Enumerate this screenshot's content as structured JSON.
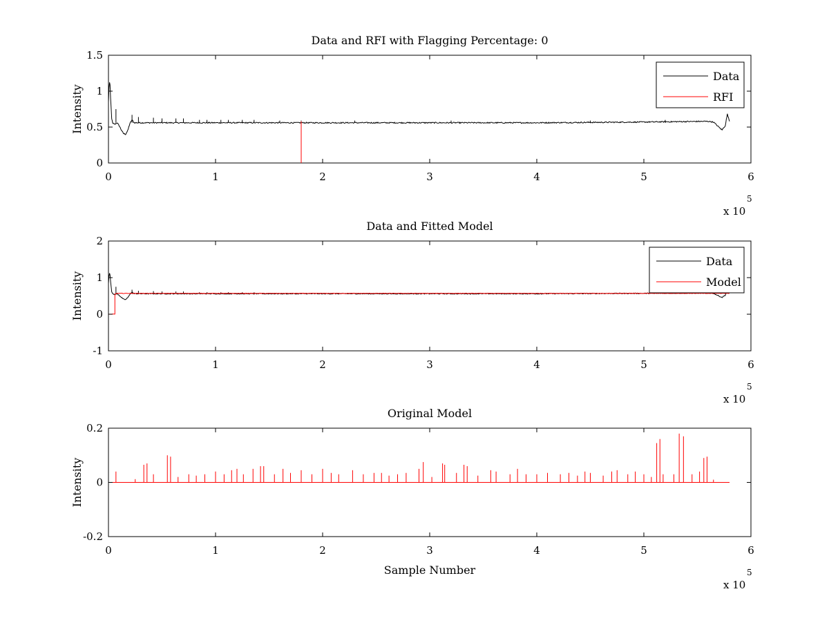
{
  "chart_data": [
    {
      "type": "line",
      "title": "Data and RFI with Flagging Percentage: 0",
      "xlabel": "",
      "ylabel": "Intensity",
      "xlim": [
        0,
        6
      ],
      "ylim": [
        0,
        1.5
      ],
      "x_exponent_label": "x 10",
      "x_exponent": "5",
      "xticks": [
        "0",
        "1",
        "2",
        "3",
        "4",
        "5",
        "6"
      ],
      "yticks": [
        "0",
        "0.5",
        "1",
        "1.5"
      ],
      "legend_position": "top-right",
      "series": [
        {
          "name": "Data",
          "color": "#000000",
          "baseline": 0.56,
          "noise": 0.008,
          "x": [
            0,
            0.005,
            0.01,
            0.015,
            0.02,
            0.03,
            0.04,
            0.06,
            0.08,
            0.1,
            0.12,
            0.14,
            0.16,
            0.18,
            0.2,
            0.22,
            0.24,
            0.28,
            0.35,
            1.0,
            2.0,
            3.0,
            4.0,
            5.0,
            5.6,
            5.65,
            5.7,
            5.73,
            5.76,
            5.78,
            5.8
          ],
          "y": [
            0.85,
            1.05,
            1.12,
            1.08,
            0.9,
            0.62,
            0.55,
            0.54,
            0.56,
            0.52,
            0.46,
            0.41,
            0.4,
            0.45,
            0.55,
            0.6,
            0.56,
            0.56,
            0.56,
            0.56,
            0.56,
            0.56,
            0.56,
            0.57,
            0.58,
            0.57,
            0.5,
            0.46,
            0.52,
            0.68,
            0.58
          ],
          "spikes": [
            [
              0.07,
              0.75
            ],
            [
              0.22,
              0.67
            ],
            [
              0.28,
              0.64
            ],
            [
              0.42,
              0.63
            ],
            [
              0.5,
              0.62
            ],
            [
              0.63,
              0.62
            ],
            [
              0.7,
              0.62
            ],
            [
              0.85,
              0.6
            ],
            [
              0.92,
              0.6
            ],
            [
              1.05,
              0.6
            ],
            [
              1.12,
              0.6
            ],
            [
              1.25,
              0.6
            ],
            [
              1.36,
              0.6
            ],
            [
              1.6,
              0.59
            ],
            [
              1.8,
              0.59
            ],
            [
              2.3,
              0.59
            ],
            [
              3.2,
              0.59
            ],
            [
              4.5,
              0.59
            ],
            [
              5.2,
              0.6
            ]
          ]
        },
        {
          "name": "RFI",
          "color": "#ff0000",
          "spikes": [
            [
              1.8,
              0.58
            ]
          ]
        }
      ]
    },
    {
      "type": "line",
      "title": "Data and Fitted Model",
      "xlabel": "",
      "ylabel": "Intensity",
      "xlim": [
        0,
        6
      ],
      "ylim": [
        -1,
        2
      ],
      "x_exponent_label": "x 10",
      "x_exponent": "5",
      "xticks": [
        "0",
        "1",
        "2",
        "3",
        "4",
        "5",
        "6"
      ],
      "yticks": [
        "-1",
        "0",
        "1",
        "2"
      ],
      "legend_position": "top-right",
      "series": [
        {
          "name": "Data",
          "color": "#000000",
          "baseline": 0.56,
          "noise": 0.012,
          "x": [
            0,
            0.005,
            0.01,
            0.015,
            0.02,
            0.03,
            0.04,
            0.06,
            0.08,
            0.1,
            0.12,
            0.14,
            0.16,
            0.18,
            0.2,
            0.22,
            0.24,
            0.28,
            0.35,
            1.0,
            2.0,
            3.0,
            4.0,
            5.0,
            5.6,
            5.65,
            5.7,
            5.73,
            5.76,
            5.78,
            5.8
          ],
          "y": [
            0.85,
            1.05,
            1.12,
            1.08,
            0.9,
            0.62,
            0.55,
            0.54,
            0.56,
            0.52,
            0.46,
            0.41,
            0.4,
            0.45,
            0.55,
            0.6,
            0.56,
            0.56,
            0.56,
            0.56,
            0.56,
            0.56,
            0.56,
            0.57,
            0.58,
            0.57,
            0.5,
            0.46,
            0.52,
            0.68,
            0.58
          ],
          "spikes": [
            [
              0.07,
              0.75
            ],
            [
              0.22,
              0.67
            ],
            [
              0.28,
              0.64
            ],
            [
              0.42,
              0.63
            ],
            [
              0.5,
              0.62
            ],
            [
              0.63,
              0.62
            ],
            [
              0.7,
              0.62
            ],
            [
              0.85,
              0.6
            ],
            [
              0.92,
              0.6
            ],
            [
              1.05,
              0.6
            ],
            [
              1.12,
              0.6
            ],
            [
              1.25,
              0.6
            ],
            [
              1.36,
              0.6
            ]
          ]
        },
        {
          "name": "Model",
          "color": "#ff0000",
          "baseline": 0.57,
          "noise": 0.006,
          "x": [
            0,
            0.06,
            0.06,
            0.08,
            5.8
          ],
          "y": [
            0,
            0,
            0.55,
            0.57,
            0.57
          ],
          "spikes": []
        }
      ]
    },
    {
      "type": "line",
      "title": "Original Model",
      "xlabel": "Sample Number",
      "ylabel": "Intensity",
      "xlim": [
        0,
        6
      ],
      "ylim": [
        -0.2,
        0.2
      ],
      "x_exponent_label": "x 10",
      "x_exponent": "5",
      "xticks": [
        "0",
        "1",
        "2",
        "3",
        "4",
        "5",
        "6"
      ],
      "yticks": [
        "-0.2",
        "0",
        "0.2"
      ],
      "legend_position": "none",
      "series": [
        {
          "color": "#ff0000",
          "baseline": 0.0,
          "noise": 0.0,
          "x": [
            0,
            5.8
          ],
          "y": [
            0,
            0
          ],
          "spikes": [
            [
              0.07,
              0.04
            ],
            [
              0.25,
              0.012
            ],
            [
              0.33,
              0.065
            ],
            [
              0.36,
              0.07
            ],
            [
              0.42,
              0.03
            ],
            [
              0.55,
              0.1
            ],
            [
              0.58,
              0.095
            ],
            [
              0.65,
              0.02
            ],
            [
              0.75,
              0.03
            ],
            [
              0.82,
              0.025
            ],
            [
              0.9,
              0.03
            ],
            [
              1.0,
              0.04
            ],
            [
              1.08,
              0.03
            ],
            [
              1.15,
              0.045
            ],
            [
              1.2,
              0.05
            ],
            [
              1.26,
              0.03
            ],
            [
              1.35,
              0.05
            ],
            [
              1.42,
              0.06
            ],
            [
              1.45,
              0.06
            ],
            [
              1.55,
              0.03
            ],
            [
              1.63,
              0.05
            ],
            [
              1.7,
              0.035
            ],
            [
              1.8,
              0.045
            ],
            [
              1.9,
              0.03
            ],
            [
              2.0,
              0.05
            ],
            [
              2.08,
              0.035
            ],
            [
              2.15,
              0.03
            ],
            [
              2.28,
              0.045
            ],
            [
              2.38,
              0.03
            ],
            [
              2.48,
              0.035
            ],
            [
              2.55,
              0.035
            ],
            [
              2.62,
              0.025
            ],
            [
              2.7,
              0.03
            ],
            [
              2.78,
              0.035
            ],
            [
              2.9,
              0.05
            ],
            [
              2.94,
              0.075
            ],
            [
              3.02,
              0.02
            ],
            [
              3.12,
              0.07
            ],
            [
              3.14,
              0.065
            ],
            [
              3.25,
              0.035
            ],
            [
              3.32,
              0.065
            ],
            [
              3.35,
              0.06
            ],
            [
              3.45,
              0.025
            ],
            [
              3.57,
              0.045
            ],
            [
              3.62,
              0.04
            ],
            [
              3.75,
              0.03
            ],
            [
              3.82,
              0.05
            ],
            [
              3.9,
              0.03
            ],
            [
              4.0,
              0.03
            ],
            [
              4.1,
              0.035
            ],
            [
              4.22,
              0.03
            ],
            [
              4.3,
              0.035
            ],
            [
              4.38,
              0.025
            ],
            [
              4.45,
              0.04
            ],
            [
              4.5,
              0.035
            ],
            [
              4.62,
              0.025
            ],
            [
              4.7,
              0.04
            ],
            [
              4.75,
              0.045
            ],
            [
              4.85,
              0.03
            ],
            [
              4.92,
              0.04
            ],
            [
              5.0,
              0.03
            ],
            [
              5.07,
              0.02
            ],
            [
              5.12,
              0.145
            ],
            [
              5.15,
              0.16
            ],
            [
              5.18,
              0.03
            ],
            [
              5.28,
              0.03
            ],
            [
              5.33,
              0.18
            ],
            [
              5.37,
              0.17
            ],
            [
              5.45,
              0.03
            ],
            [
              5.52,
              0.04
            ],
            [
              5.56,
              0.09
            ],
            [
              5.59,
              0.095
            ],
            [
              5.65,
              0.01
            ]
          ]
        }
      ]
    }
  ]
}
